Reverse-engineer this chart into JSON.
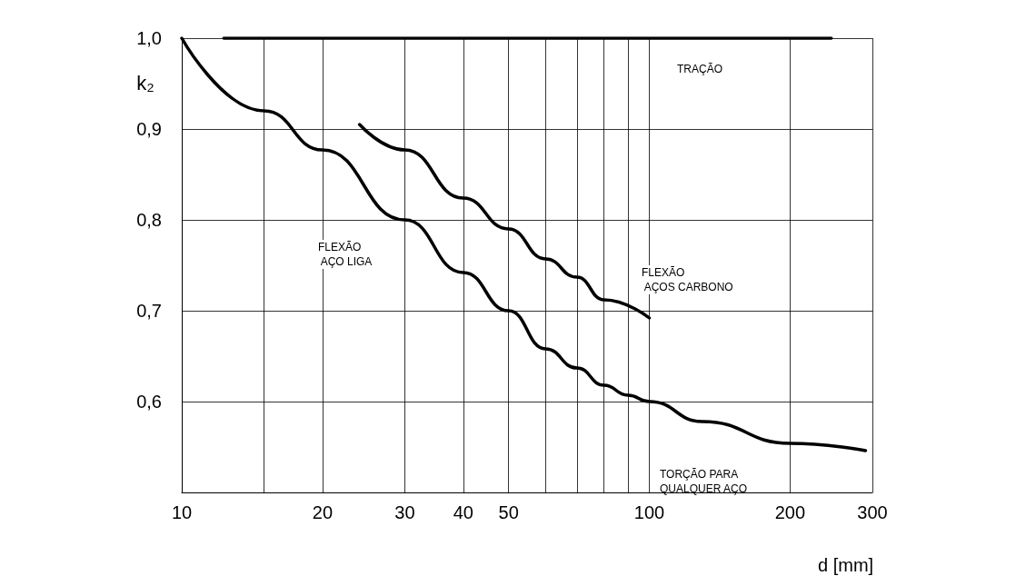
{
  "chart_data": {
    "type": "line",
    "xlabel": "d [mm]",
    "ylabel": "k₂",
    "log": "x",
    "xlim": [
      10,
      300
    ],
    "ylim": [
      0.5,
      1.0
    ],
    "xticks": [
      10,
      {
        "value": 15,
        "label": null
      },
      20,
      30,
      40,
      50,
      {
        "value": 60,
        "label": null
      },
      {
        "value": 70,
        "label": null
      },
      {
        "value": 80,
        "label": null
      },
      {
        "value": 90,
        "label": null
      },
      100,
      200,
      300
    ],
    "yticks": [
      {
        "value": 0.6,
        "label": "0,6"
      },
      {
        "value": 0.7,
        "label": "0,7"
      },
      {
        "value": 0.8,
        "label": "0,8"
      },
      {
        "value": 0.9,
        "label": "0,9"
      },
      {
        "value": 1.0,
        "label": "1,0"
      }
    ],
    "grid": true,
    "marker": "none",
    "line_style": "solid",
    "series": [
      {
        "color": "#000000",
        "x": [
          12.3,
          245
        ],
        "values": [
          1.0,
          1.0
        ]
      },
      {
        "color": "#000000",
        "x": [
          10,
          15,
          20,
          30,
          40,
          50,
          60,
          70,
          80,
          90,
          100,
          130,
          200,
          290
        ],
        "values": [
          1.0,
          0.92,
          0.877,
          0.8,
          0.742,
          0.7,
          0.658,
          0.637,
          0.618,
          0.607,
          0.6,
          0.578,
          0.554,
          0.546
        ]
      },
      {
        "color": "#000000",
        "x": [
          24,
          30,
          40,
          50,
          60,
          70,
          80,
          100
        ],
        "values": [
          0.905,
          0.877,
          0.824,
          0.79,
          0.757,
          0.737,
          0.712,
          0.692
        ]
      }
    ],
    "annotations": [
      "TRAÇÃO",
      "FLEXÃO\n AÇO LIGA",
      "FLEXÃO\n AÇOS CARBONO",
      "TORÇÃO PARA\nQUALQUER AÇO"
    ]
  }
}
